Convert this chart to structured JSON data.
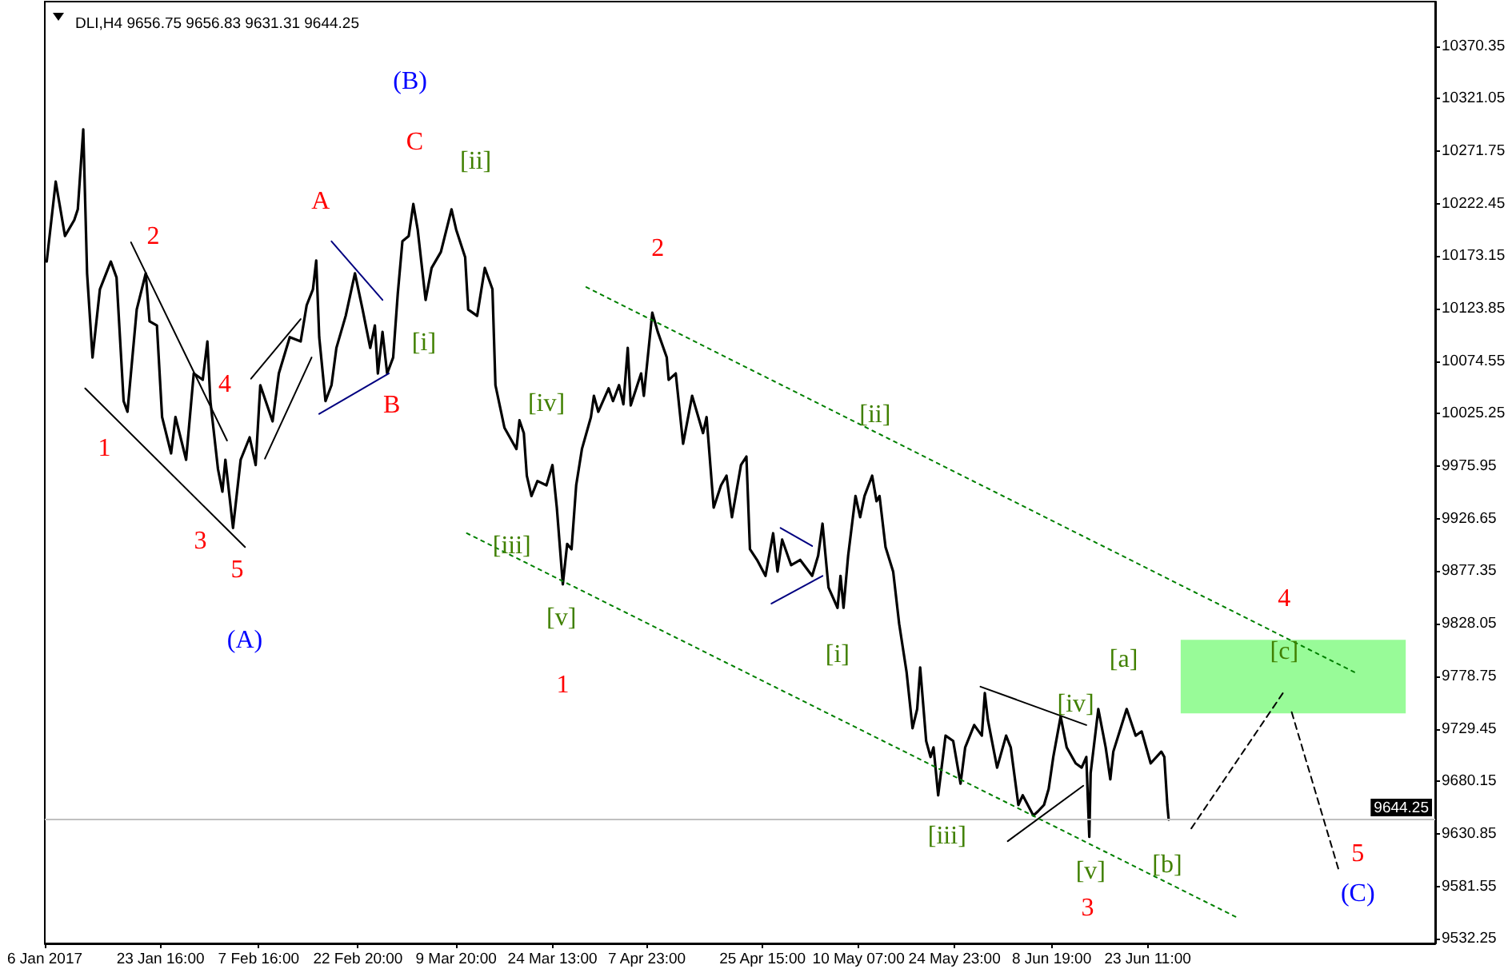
{
  "chart_data": {
    "type": "line",
    "title": "DLI,H4 9656.75 9656.83 9631.31 9644.25",
    "marker": "none",
    "line_style": "solid",
    "xlim": [
      "2017-01-06",
      "2017-08-06T09:00"
    ],
    "xticks": [
      {
        "value": "2017-01-06",
        "label": "6 Jan 2017"
      },
      {
        "value": "2017-01-23T16:00",
        "label": "23 Jan 16:00"
      },
      {
        "value": "2017-02-07T16:00",
        "label": "7 Feb 16:00"
      },
      {
        "value": "2017-02-22T20:00",
        "label": "22 Feb 20:00"
      },
      {
        "value": "2017-03-09T20:00",
        "label": "9 Mar 20:00"
      },
      {
        "value": "2017-03-24T13:00",
        "label": "24 Mar 13:00"
      },
      {
        "value": "2017-04-07T23:00",
        "label": "7 Apr 23:00"
      },
      {
        "value": "2017-04-25T15:00",
        "label": "25 Apr 15:00"
      },
      {
        "value": "2017-05-10T07:00",
        "label": "10 May 07:00"
      },
      {
        "value": "2017-05-24T23:00",
        "label": "24 May 23:00"
      },
      {
        "value": "2017-06-08T19:00",
        "label": "8 Jun 19:00"
      },
      {
        "value": "2017-06-23T11:00",
        "label": "23 Jun 11:00"
      }
    ],
    "ylim": [
      9528,
      10412
    ],
    "yticks": [
      9532.25,
      9581.55,
      9630.85,
      9680.15,
      9729.45,
      9778.75,
      9828.05,
      9877.35,
      9926.65,
      9975.95,
      10025.25,
      10074.55,
      10123.85,
      10173.15,
      10222.45,
      10271.75,
      10321.05,
      10370.35
    ],
    "series": [
      {
        "color": "#000000",
        "x": [
          "2017-01-06T07:00",
          "2017-01-07T16:00",
          "2017-01-09T02:00",
          "2017-01-10T12:00",
          "2017-01-11T01:00",
          "2017-01-11T21:00",
          "2017-01-12T11:00",
          "2017-01-13T07:00",
          "2017-01-14T10:00",
          "2017-01-16T02:00",
          "2017-01-16T23:00",
          "2017-01-18T01:00",
          "2017-01-18T15:00",
          "2017-01-20T01:00",
          "2017-01-21T10:00",
          "2017-01-22T00:00",
          "2017-01-23T03:00",
          "2017-01-23T22:00",
          "2017-01-25T07:00",
          "2017-01-25T23:00",
          "2017-01-27T14:00",
          "2017-01-28T18:00",
          "2017-01-30T03:00",
          "2017-01-30T20:00",
          "2017-01-31T07:00",
          "2017-02-01T11:00",
          "2017-02-02T03:00",
          "2017-02-02T14:00",
          "2017-02-03T18:00",
          "2017-02-04T22:00",
          "2017-02-06T07:00",
          "2017-02-07T05:00",
          "2017-02-07T22:00",
          "2017-02-09T19:00",
          "2017-02-10T18:00",
          "2017-02-12T10:00",
          "2017-02-14T02:00",
          "2017-02-15T00:00",
          "2017-02-15T23:00",
          "2017-02-16T11:00",
          "2017-02-16T22:00",
          "2017-02-17T21:00",
          "2017-02-18T19:00",
          "2017-02-19T13:00",
          "2017-02-20T23:00",
          "2017-02-22T09:00",
          "2017-02-23T13:00",
          "2017-02-24T17:00",
          "2017-02-25T10:00",
          "2017-02-25T21:00",
          "2017-02-26T14:00",
          "2017-02-27T07:00",
          "2017-02-28T05:00",
          "2017-02-28T22:00",
          "2017-03-01T15:00",
          "2017-03-02T14:00",
          "2017-03-03T07:00",
          "2017-03-03T23:00",
          "2017-03-05T04:00",
          "2017-03-06T02:00",
          "2017-03-07T12:00",
          "2017-03-09T03:00",
          "2017-03-09T20:00",
          "2017-03-11T05:00",
          "2017-03-11T16:00",
          "2017-03-13T01:00",
          "2017-03-14T05:00",
          "2017-03-15T09:00",
          "2017-03-15T20:00",
          "2017-03-17T05:00",
          "2017-03-19T01:00",
          "2017-03-19T12:00",
          "2017-03-20T04:00",
          "2017-03-20T15:00",
          "2017-03-21T08:00",
          "2017-03-22T06:00",
          "2017-03-23T15:00",
          "2017-03-24T13:00",
          "2017-03-25T05:00",
          "2017-03-26T03:00",
          "2017-03-26T19:00",
          "2017-03-27T11:00",
          "2017-03-28T04:00",
          "2017-03-29T01:00",
          "2017-03-30T10:00",
          "2017-03-30T21:00",
          "2017-03-31T13:00",
          "2017-04-02T03:00",
          "2017-04-02T19:00",
          "2017-04-03T17:00",
          "2017-04-04T09:00",
          "2017-04-05T01:00",
          "2017-04-05T12:00",
          "2017-04-07T02:00",
          "2017-04-07T12:00",
          "2017-04-08T19:00",
          "2017-04-09T15:00",
          "2017-04-11T00:00",
          "2017-04-11T07:00",
          "2017-04-12T09:00",
          "2017-04-13T12:00",
          "2017-04-14T21:00",
          "2017-04-16T13:00",
          "2017-04-17T02:00",
          "2017-04-18T04:00",
          "2017-04-19T07:00",
          "2017-04-20T03:00",
          "2017-04-20T23:00",
          "2017-04-22T08:00",
          "2017-04-23T04:00",
          "2017-04-23T17:00",
          "2017-04-24T19:00",
          "2017-04-26T02:00",
          "2017-04-27T06:00",
          "2017-04-27T22:00",
          "2017-04-28T15:00",
          "2017-04-30T00:00",
          "2017-05-01T09:00",
          "2017-05-03T05:00",
          "2017-05-04T03:00",
          "2017-05-04T19:00",
          "2017-05-05T17:00",
          "2017-05-07T02:00",
          "2017-05-07T13:00",
          "2017-05-08T00:00",
          "2017-05-08T17:00",
          "2017-05-09T20:00",
          "2017-05-10T13:00",
          "2017-05-11T05:00",
          "2017-05-12T09:00",
          "2017-05-13T01:00",
          "2017-05-13T12:00",
          "2017-05-14T10:00",
          "2017-05-15T14:00",
          "2017-05-16T12:00",
          "2017-05-17T15:00",
          "2017-05-18T13:00",
          "2017-05-19T06:00",
          "2017-05-19T17:00",
          "2017-05-20T15:00",
          "2017-05-21T07:00",
          "2017-05-21T18:00",
          "2017-05-22T11:00",
          "2017-05-23T14:00",
          "2017-05-24T18:00",
          "2017-05-25T21:00",
          "2017-05-26T14:00",
          "2017-05-27T23:00",
          "2017-05-29T03:00",
          "2017-05-29T14:00",
          "2017-05-30T01:00",
          "2017-05-31T11:00",
          "2017-06-01T20:00",
          "2017-06-02T13:00",
          "2017-06-03T17:00",
          "2017-06-04T09:00",
          "2017-06-06T00:00",
          "2017-06-06T17:00",
          "2017-06-07T15:00",
          "2017-06-08T08:00",
          "2017-06-09T01:00",
          "2017-06-10T04:00",
          "2017-06-11T02:00",
          "2017-06-12T11:00",
          "2017-06-13T09:00",
          "2017-06-14T02:00",
          "2017-06-14T13:00",
          "2017-06-14T18:00",
          "2017-06-15T22:00",
          "2017-06-17T01:00",
          "2017-06-17T18:00",
          "2017-06-18T05:00",
          "2017-06-20T06:00",
          "2017-06-21T15:00",
          "2017-06-22T13:00",
          "2017-06-23T22:00",
          "2017-06-25T13:00",
          "2017-06-26T00:00",
          "2017-06-26T11:00",
          "2017-06-26T16:00"
        ],
        "values": [
          10168,
          10243,
          10192,
          10207,
          10217,
          10292,
          10157,
          10078,
          10142,
          10168,
          10153,
          10037,
          10027,
          10123,
          10157,
          10112,
          10108,
          10022,
          9988,
          10022,
          9982,
          10063,
          10057,
          10093,
          10037,
          9973,
          9952,
          9982,
          9918,
          9982,
          10003,
          9977,
          10052,
          10018,
          10063,
          10097,
          10093,
          10127,
          10142,
          10169,
          10097,
          10037,
          10052,
          10087,
          10117,
          10157,
          10123,
          10087,
          10108,
          10063,
          10102,
          10063,
          10078,
          10138,
          10187,
          10192,
          10222,
          10198,
          10132,
          10162,
          10177,
          10217,
          10198,
          10172,
          10123,
          10117,
          10162,
          10142,
          10052,
          10012,
          9992,
          10019,
          10007,
          9967,
          9948,
          9962,
          9958,
          9977,
          9937,
          9865,
          9903,
          9898,
          9958,
          9992,
          10022,
          10042,
          10027,
          10049,
          10037,
          10052,
          10034,
          10087,
          10033,
          10063,
          10042,
          10120,
          10102,
          10078,
          10057,
          10063,
          9997,
          10042,
          10007,
          10022,
          9937,
          9958,
          9967,
          9928,
          9977,
          9985,
          9898,
          9888,
          9873,
          9913,
          9877,
          9907,
          9883,
          9888,
          9873,
          9892,
          9922,
          9862,
          9843,
          9873,
          9843,
          9892,
          9948,
          9928,
          9948,
          9967,
          9943,
          9948,
          9900,
          9877,
          9828,
          9783,
          9730,
          9748,
          9787,
          9718,
          9703,
          9712,
          9667,
          9723,
          9718,
          9678,
          9712,
          9733,
          9723,
          9763,
          9738,
          9693,
          9723,
          9712,
          9658,
          9667,
          9648,
          9652,
          9658,
          9673,
          9703,
          9741,
          9712,
          9697,
          9693,
          9703,
          9628,
          9688,
          9748,
          9712,
          9682,
          9708,
          9748,
          9723,
          9727,
          9697,
          9708,
          9703,
          9658,
          9644.25
        ]
      },
      {
        "color": "#000000",
        "x": [
          "2017-01-12T04:00",
          "2017-02-05T14:00"
        ],
        "values": [
          10049,
          9900
        ]
      },
      {
        "color": "#000000",
        "x": [
          "2017-01-19T04:00",
          "2017-02-02T20:00"
        ],
        "values": [
          10186,
          10000
        ]
      },
      {
        "color": "#000000",
        "x": [
          "2017-02-06T12:00",
          "2017-02-14T02:00"
        ],
        "values": [
          10058,
          10114
        ]
      },
      {
        "color": "#000000",
        "x": [
          "2017-02-08T15:00",
          "2017-02-15T18:00"
        ],
        "values": [
          9983,
          10078
        ]
      },
      {
        "color": "#000080",
        "x": [
          "2017-02-18T19:00",
          "2017-02-26T14:00"
        ],
        "values": [
          10187,
          10132
        ]
      },
      {
        "color": "#000080",
        "x": [
          "2017-02-16T22:00",
          "2017-02-27T13:00"
        ],
        "values": [
          10025,
          10063
        ]
      },
      {
        "color": "#000080",
        "x": [
          "2017-04-28T09:00",
          "2017-05-03T05:00"
        ],
        "values": [
          9918,
          9901
        ]
      },
      {
        "color": "#000080",
        "x": [
          "2017-04-27T00:00",
          "2017-05-04T19:00"
        ],
        "values": [
          9847,
          9873
        ]
      },
      {
        "color": "#000000",
        "x": [
          "2017-05-28T22:00",
          "2017-06-14T02:00"
        ],
        "values": [
          9769,
          9733
        ]
      },
      {
        "color": "#000000",
        "x": [
          "2017-06-02T02:00",
          "2017-06-13T15:00"
        ],
        "values": [
          9624,
          9676
        ]
      },
      {
        "color": "#008000",
        "line_style": "dotted",
        "x": [
          "2017-03-29T17:00",
          "2017-07-25T13:00"
        ],
        "values": [
          10144,
          9781
        ]
      },
      {
        "color": "#008000",
        "line_style": "dotted",
        "x": [
          "2017-03-11T11:00",
          "2017-07-07T05:00"
        ],
        "values": [
          9913,
          9552
        ]
      },
      {
        "color": "#000000",
        "line_style": "dashed",
        "x": [
          "2017-06-30T03:00",
          "2017-07-14T08:00"
        ],
        "values": [
          9636,
          9765
        ]
      },
      {
        "color": "#000000",
        "line_style": "dashed",
        "x": [
          "2017-07-15T11:00",
          "2017-07-22T14:00"
        ],
        "values": [
          9745,
          9598
        ]
      },
      {
        "color": "#98fb98",
        "x": [
          "2017-06-28T12:00",
          "2017-08-01T21:00"
        ],
        "values": [
          null,
          null
        ],
        "lower": [
          9744,
          9744
        ],
        "upper": [
          9813,
          9813
        ]
      }
    ],
    "ref_lines": [
      {
        "axis": "y",
        "value": 9644.25,
        "label": "9644.25",
        "color": "#c0c0c0"
      }
    ],
    "annotations": [
      "(B)",
      "C",
      "[ii]",
      "A",
      "2",
      "4",
      "1",
      "3",
      "5",
      "(A)",
      "B",
      "[i]",
      "[iv]",
      "[iii]",
      "[v]",
      "1",
      "2",
      "[ii]",
      "[i]",
      "[iii]",
      "3",
      "[v]",
      "[iv]",
      "[a]",
      "[b]",
      "4",
      "[c]",
      "5",
      "(C)"
    ]
  }
}
